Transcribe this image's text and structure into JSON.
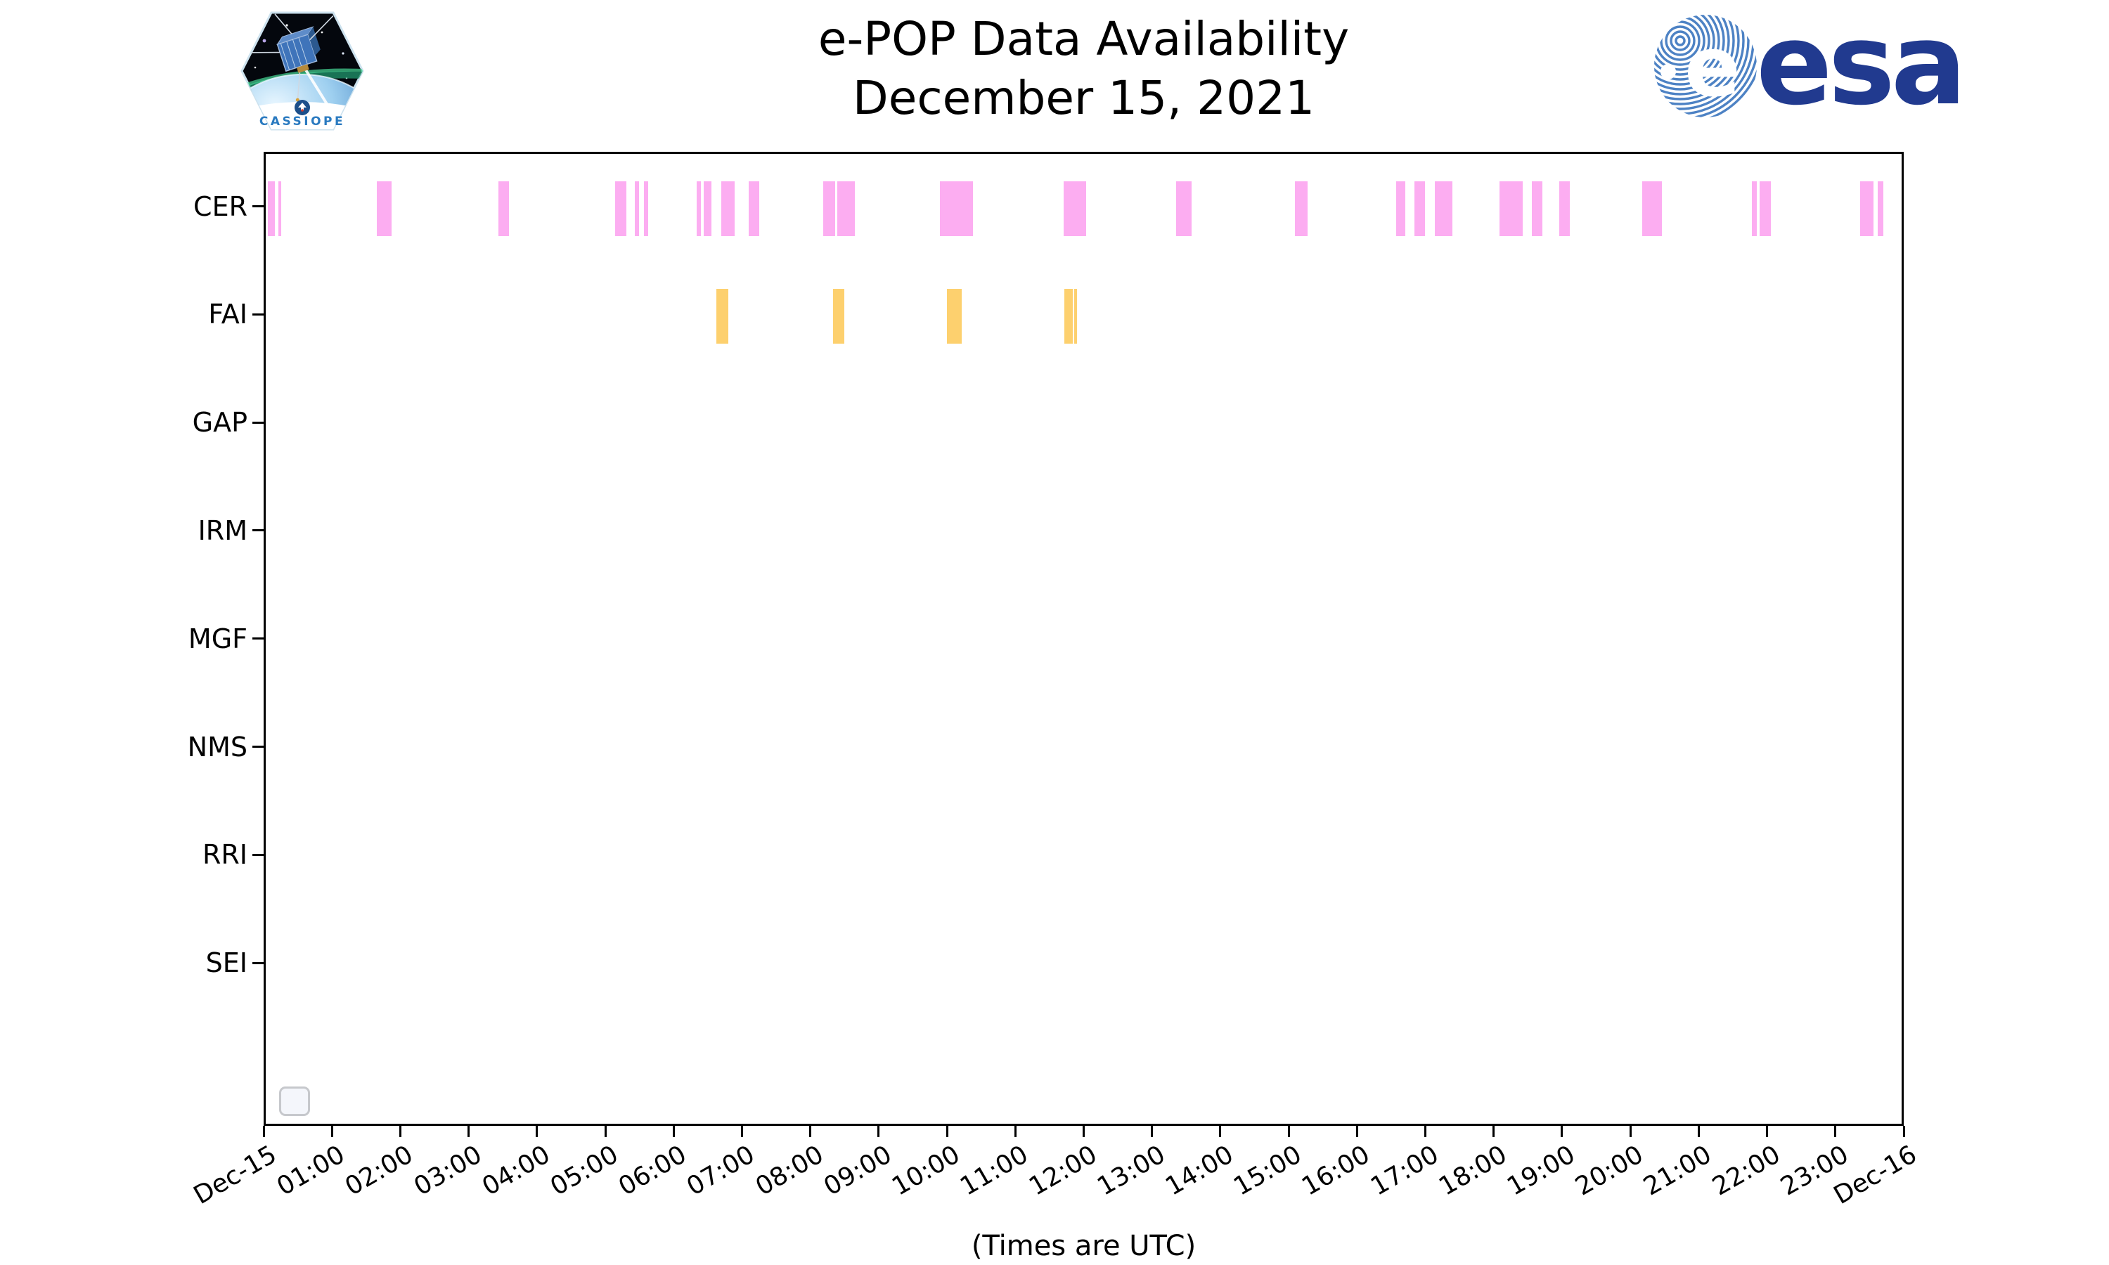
{
  "header": {
    "title_line1": "e-POP Data Availability",
    "title_line2": "December 15, 2021",
    "cassiope_patch_label": "CASSIOPE",
    "esa_logo_text": "esa"
  },
  "footer": {
    "xlabel": "(Times are UTC)"
  },
  "chart_data": {
    "type": "bar",
    "variant": "horizontal-availability-timeline",
    "title": "e-POP Data Availability — December 15, 2021",
    "xlabel": "(Times are UTC)",
    "ylabel": "",
    "grid": false,
    "legend": {
      "visible": true,
      "entries": [],
      "note": "empty rounded legend box at bottom-left of axes"
    },
    "x_axis": {
      "range_hours": [
        0,
        24
      ],
      "tick_interval_hours": 1,
      "tick_rotation_deg": 30,
      "tick_labels": [
        "Dec-15",
        "01:00",
        "02:00",
        "03:00",
        "04:00",
        "05:00",
        "06:00",
        "07:00",
        "08:00",
        "09:00",
        "10:00",
        "11:00",
        "12:00",
        "13:00",
        "14:00",
        "15:00",
        "16:00",
        "17:00",
        "18:00",
        "19:00",
        "20:00",
        "21:00",
        "22:00",
        "23:00",
        "Dec-16"
      ]
    },
    "rows": [
      "CER",
      "FAI",
      "GAP",
      "IRM",
      "MGF",
      "NMS",
      "RRI",
      "SEI"
    ],
    "colors": {
      "CER": "#fcadf1",
      "FAI": "#fdd06e"
    },
    "availability_intervals_utc_hours": {
      "CER": [
        [
          0.03,
          0.13
        ],
        [
          0.18,
          0.23
        ],
        [
          1.63,
          1.84
        ],
        [
          3.4,
          3.56
        ],
        [
          5.11,
          5.28
        ],
        [
          5.4,
          5.46
        ],
        [
          5.53,
          5.6
        ],
        [
          6.31,
          6.37
        ],
        [
          6.41,
          6.52
        ],
        [
          6.67,
          6.86
        ],
        [
          7.07,
          7.22
        ],
        [
          8.16,
          8.33
        ],
        [
          8.36,
          8.62
        ],
        [
          9.86,
          10.35
        ],
        [
          11.68,
          12.01
        ],
        [
          13.32,
          13.55
        ],
        [
          15.06,
          15.24
        ],
        [
          16.54,
          16.68
        ],
        [
          16.81,
          16.96
        ],
        [
          17.11,
          17.37
        ],
        [
          18.05,
          18.39
        ],
        [
          18.53,
          18.68
        ],
        [
          18.93,
          19.08
        ],
        [
          20.14,
          20.43
        ],
        [
          21.75,
          21.82
        ],
        [
          21.86,
          22.02
        ],
        [
          23.33,
          23.53
        ],
        [
          23.59,
          23.67
        ]
      ],
      "FAI": [
        [
          6.59,
          6.77
        ],
        [
          8.3,
          8.47
        ],
        [
          9.97,
          10.18
        ],
        [
          11.69,
          11.81
        ],
        [
          11.83,
          11.86
        ]
      ],
      "GAP": [],
      "IRM": [],
      "MGF": [],
      "NMS": [],
      "RRI": [],
      "SEI": []
    }
  }
}
